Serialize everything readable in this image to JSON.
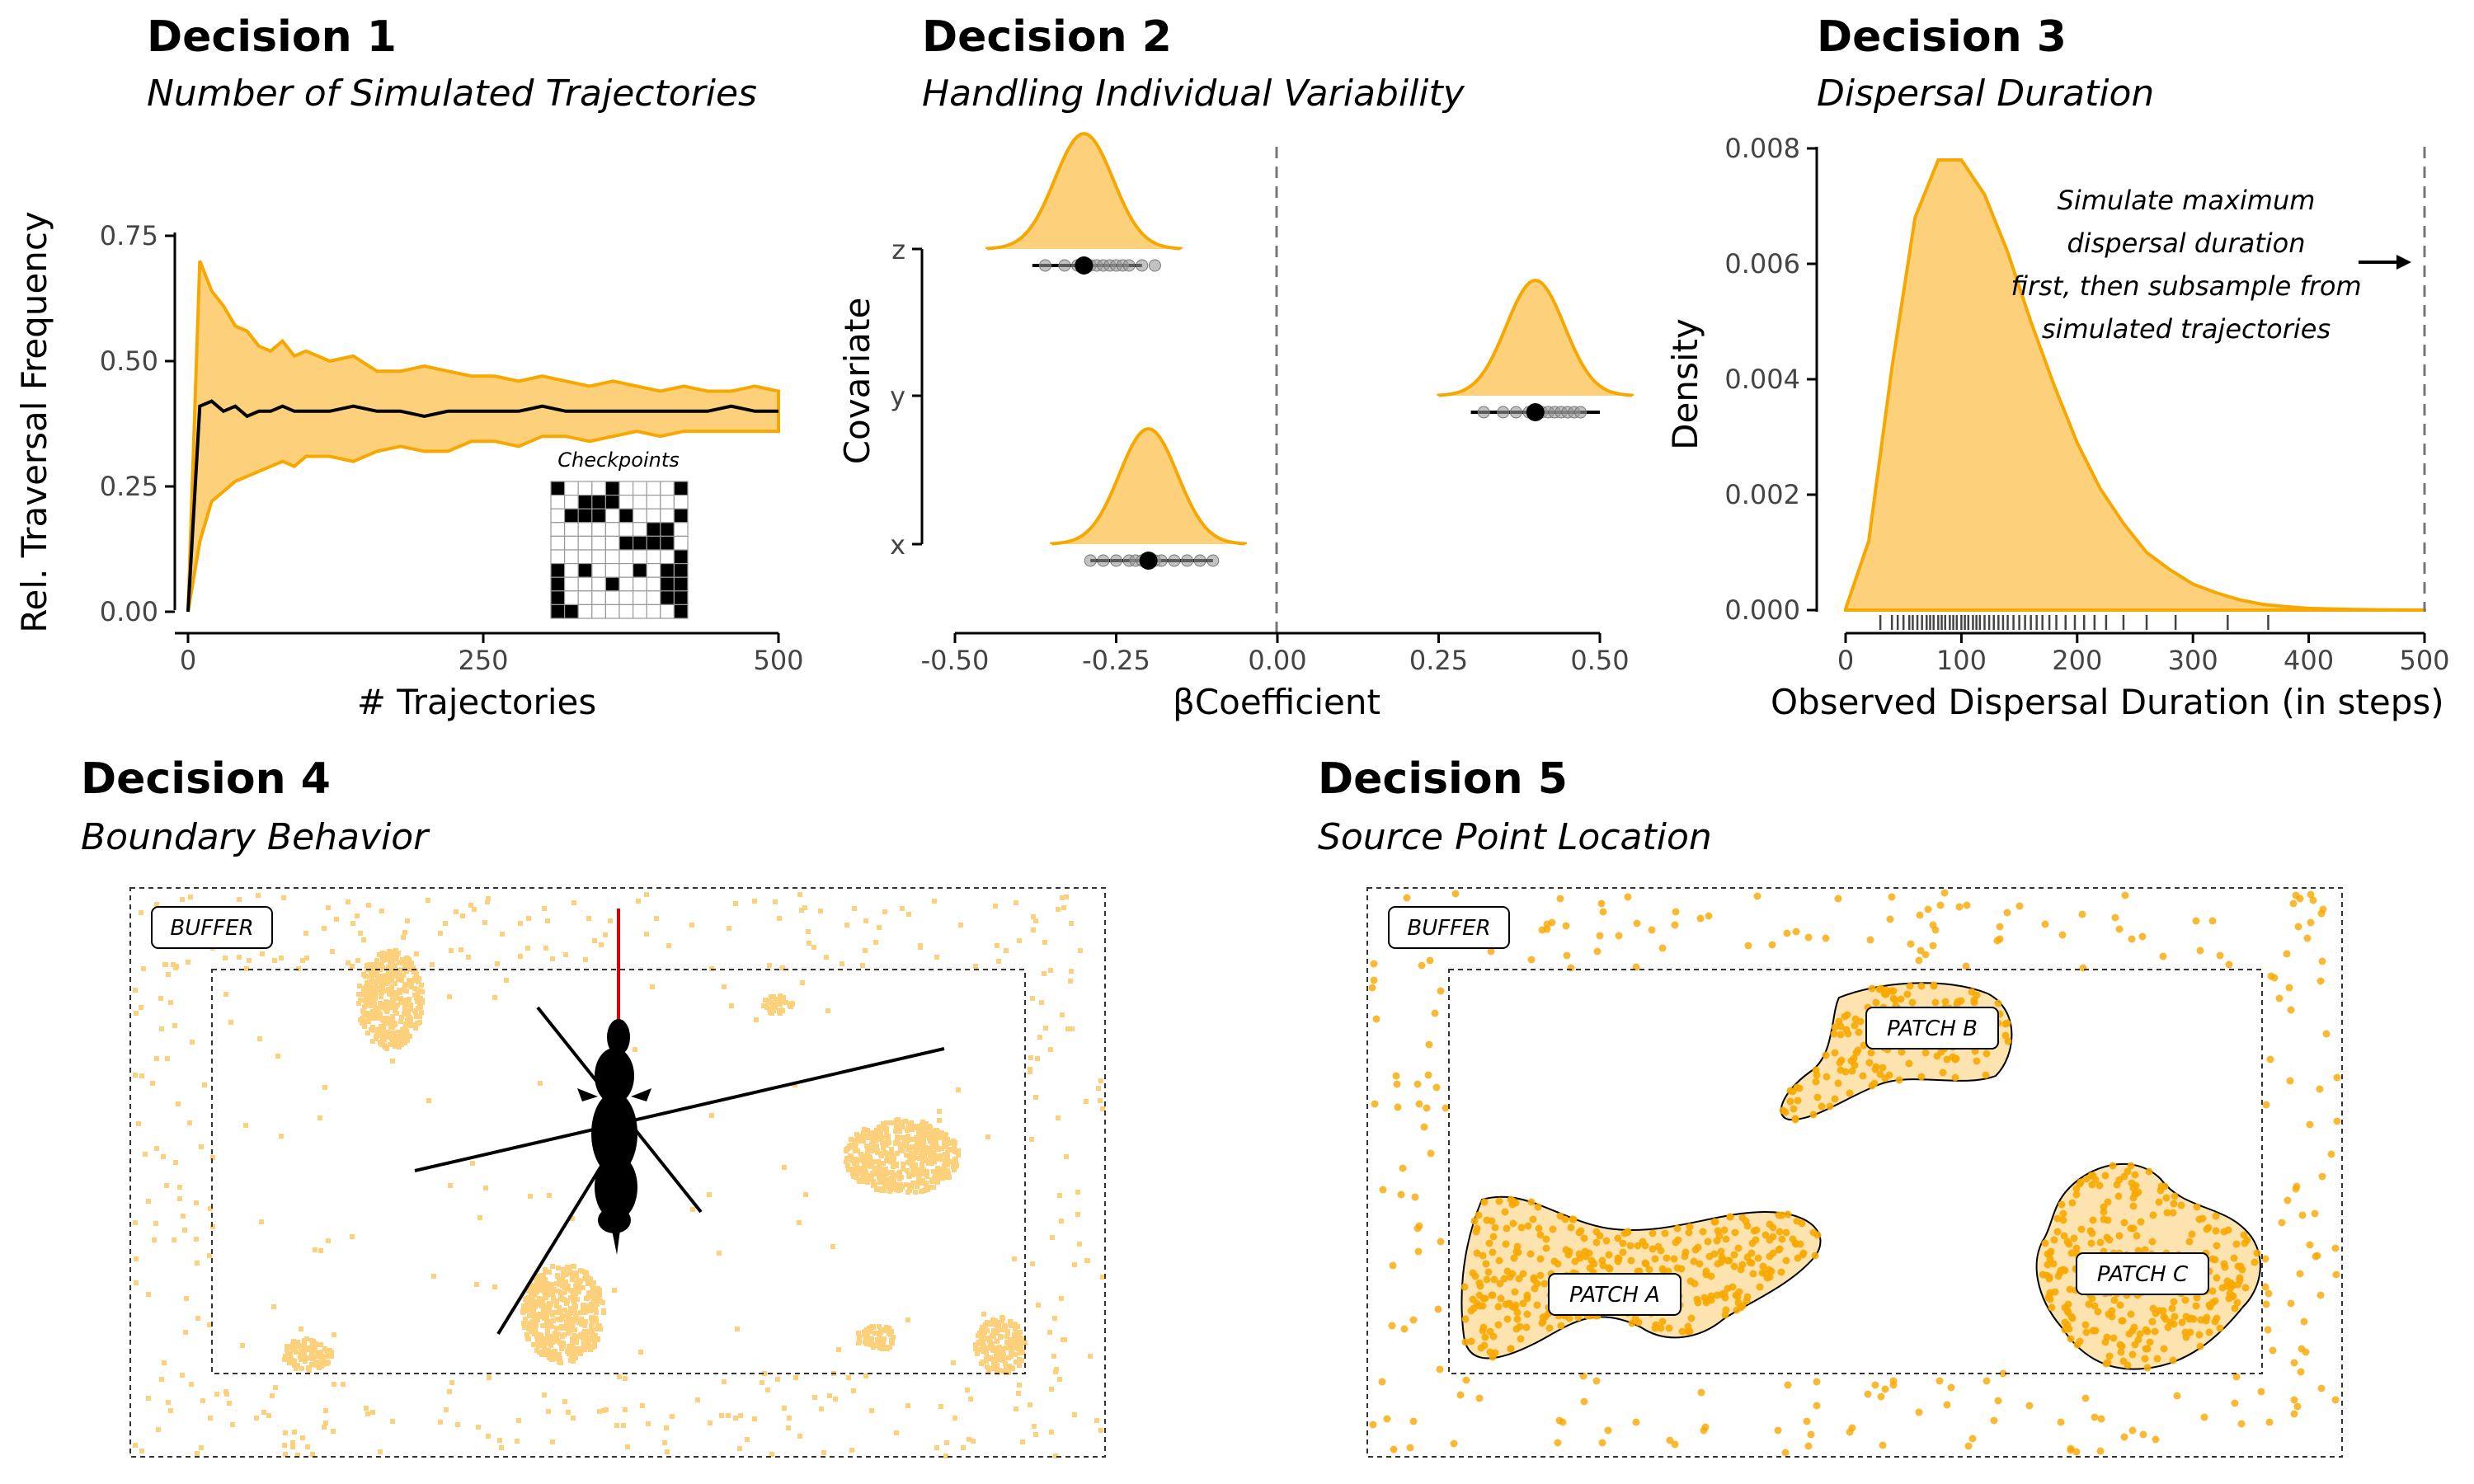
{
  "colors": {
    "fill": "#fdd17c",
    "line": "#f7a800",
    "dark": "#000000",
    "grey": "#777777",
    "red": "#e00000",
    "patch": "#fde3b0"
  },
  "panels": [
    {
      "title": "Decision 1",
      "subtitle": "Number of Simulated Trajectories"
    },
    {
      "title": "Decision 2",
      "subtitle": "Handling Individual Variability"
    },
    {
      "title": "Decision 3",
      "subtitle": "Dispersal Duration"
    },
    {
      "title": "Decision 4",
      "subtitle": "Boundary Behavior"
    },
    {
      "title": "Decision 5",
      "subtitle": "Source Point Location"
    }
  ],
  "chart_data": [
    {
      "type": "area",
      "xlabel": "# Trajectories",
      "ylabel": "Rel. Traversal Frequency",
      "xlim": [
        0,
        500
      ],
      "ylim": [
        0,
        0.75
      ],
      "xticks": [
        "0",
        "250",
        "500"
      ],
      "yticks": [
        "0.00",
        "0.25",
        "0.50",
        "0.75"
      ],
      "x": [
        0,
        10,
        20,
        30,
        40,
        50,
        60,
        70,
        80,
        90,
        100,
        120,
        140,
        160,
        180,
        200,
        220,
        240,
        260,
        280,
        300,
        320,
        340,
        360,
        380,
        400,
        420,
        440,
        460,
        480,
        500
      ],
      "mean": [
        0,
        0.41,
        0.42,
        0.4,
        0.41,
        0.39,
        0.4,
        0.4,
        0.41,
        0.4,
        0.4,
        0.4,
        0.41,
        0.4,
        0.4,
        0.39,
        0.4,
        0.4,
        0.4,
        0.4,
        0.41,
        0.4,
        0.4,
        0.4,
        0.4,
        0.4,
        0.4,
        0.4,
        0.41,
        0.4,
        0.4
      ],
      "upper": [
        0,
        0.7,
        0.64,
        0.61,
        0.57,
        0.56,
        0.53,
        0.52,
        0.54,
        0.51,
        0.52,
        0.5,
        0.51,
        0.48,
        0.48,
        0.49,
        0.48,
        0.47,
        0.47,
        0.46,
        0.47,
        0.46,
        0.45,
        0.46,
        0.45,
        0.44,
        0.45,
        0.44,
        0.44,
        0.45,
        0.44
      ],
      "lower": [
        0,
        0.14,
        0.22,
        0.24,
        0.26,
        0.27,
        0.28,
        0.29,
        0.3,
        0.29,
        0.31,
        0.31,
        0.3,
        0.32,
        0.33,
        0.32,
        0.32,
        0.34,
        0.34,
        0.33,
        0.35,
        0.35,
        0.34,
        0.35,
        0.36,
        0.35,
        0.36,
        0.36,
        0.36,
        0.36,
        0.36
      ],
      "inset_label": "Checkpoints",
      "inset_cells": [
        [
          0,
          0
        ],
        [
          0,
          4
        ],
        [
          0,
          9
        ],
        [
          1,
          2
        ],
        [
          1,
          3
        ],
        [
          1,
          4
        ],
        [
          2,
          1
        ],
        [
          2,
          2
        ],
        [
          2,
          3
        ],
        [
          2,
          5
        ],
        [
          2,
          9
        ],
        [
          3,
          7
        ],
        [
          3,
          8
        ],
        [
          4,
          5
        ],
        [
          4,
          6
        ],
        [
          4,
          7
        ],
        [
          4,
          8
        ],
        [
          5,
          9
        ],
        [
          6,
          0
        ],
        [
          6,
          2
        ],
        [
          6,
          6
        ],
        [
          6,
          8
        ],
        [
          6,
          9
        ],
        [
          7,
          0
        ],
        [
          7,
          4
        ],
        [
          7,
          8
        ],
        [
          7,
          9
        ],
        [
          8,
          0
        ],
        [
          8,
          8
        ],
        [
          8,
          9
        ],
        [
          9,
          0
        ],
        [
          9,
          1
        ],
        [
          9,
          9
        ]
      ]
    },
    {
      "type": "density",
      "xlabel": "βCoefficient",
      "ylabel": "Covariate",
      "xlim": [
        -0.5,
        0.5
      ],
      "xticks": [
        "-0.50",
        "-0.25",
        "0.00",
        "0.25",
        "0.50"
      ],
      "categories": [
        "x",
        "y",
        "z"
      ],
      "series": [
        {
          "name": "z",
          "mean": -0.3,
          "ci": [
            -0.38,
            -0.21
          ],
          "points": [
            -0.36,
            -0.33,
            -0.31,
            -0.29,
            -0.28,
            -0.27,
            -0.26,
            -0.25,
            -0.24,
            -0.23,
            -0.21,
            -0.19
          ]
        },
        {
          "name": "y",
          "mean": 0.4,
          "ci": [
            0.3,
            0.5
          ],
          "points": [
            0.32,
            0.35,
            0.37,
            0.39,
            0.4,
            0.41,
            0.42,
            0.43,
            0.44,
            0.45,
            0.46,
            0.47
          ]
        },
        {
          "name": "x",
          "mean": -0.2,
          "ci": [
            -0.29,
            -0.1
          ],
          "points": [
            -0.29,
            -0.27,
            -0.25,
            -0.23,
            -0.22,
            -0.21,
            -0.19,
            -0.18,
            -0.16,
            -0.14,
            -0.12,
            -0.1
          ]
        }
      ]
    },
    {
      "type": "density",
      "xlabel": "Observed Dispersal Duration (in steps)",
      "ylabel": "Density",
      "xlim": [
        0,
        500
      ],
      "ylim": [
        0,
        0.008
      ],
      "xticks": [
        "0",
        "100",
        "200",
        "300",
        "400",
        "500"
      ],
      "yticks": [
        "0.000",
        "0.002",
        "0.004",
        "0.006",
        "0.008"
      ],
      "x": [
        0,
        20,
        40,
        60,
        80,
        100,
        120,
        140,
        160,
        180,
        200,
        220,
        240,
        260,
        280,
        300,
        320,
        340,
        360,
        380,
        400,
        420,
        440,
        460,
        480,
        500
      ],
      "density": [
        2e-05,
        0.0012,
        0.0042,
        0.0068,
        0.0078,
        0.0078,
        0.0072,
        0.0062,
        0.005,
        0.0039,
        0.0029,
        0.0021,
        0.0015,
        0.001,
        0.0007,
        0.00045,
        0.0003,
        0.00018,
        0.0001,
        6e-05,
        3e-05,
        2e-05,
        1e-05,
        5e-06,
        2e-06,
        1e-06
      ],
      "rug": [
        30,
        40,
        45,
        50,
        55,
        58,
        62,
        66,
        70,
        73,
        76,
        80,
        83,
        86,
        90,
        93,
        96,
        100,
        103,
        106,
        110,
        113,
        116,
        120,
        124,
        128,
        132,
        136,
        140,
        145,
        150,
        155,
        160,
        165,
        170,
        176,
        182,
        190,
        198,
        206,
        215,
        225,
        240,
        260,
        285,
        330,
        365
      ],
      "vline": 500,
      "annotation": [
        "Simulate maximum",
        "dispersal duration",
        "first, then subsample from",
        "simulated trajectories"
      ]
    }
  ],
  "maps": {
    "buffer_label": "BUFFER",
    "patches": [
      "PATCH A",
      "PATCH B",
      "PATCH C"
    ]
  }
}
